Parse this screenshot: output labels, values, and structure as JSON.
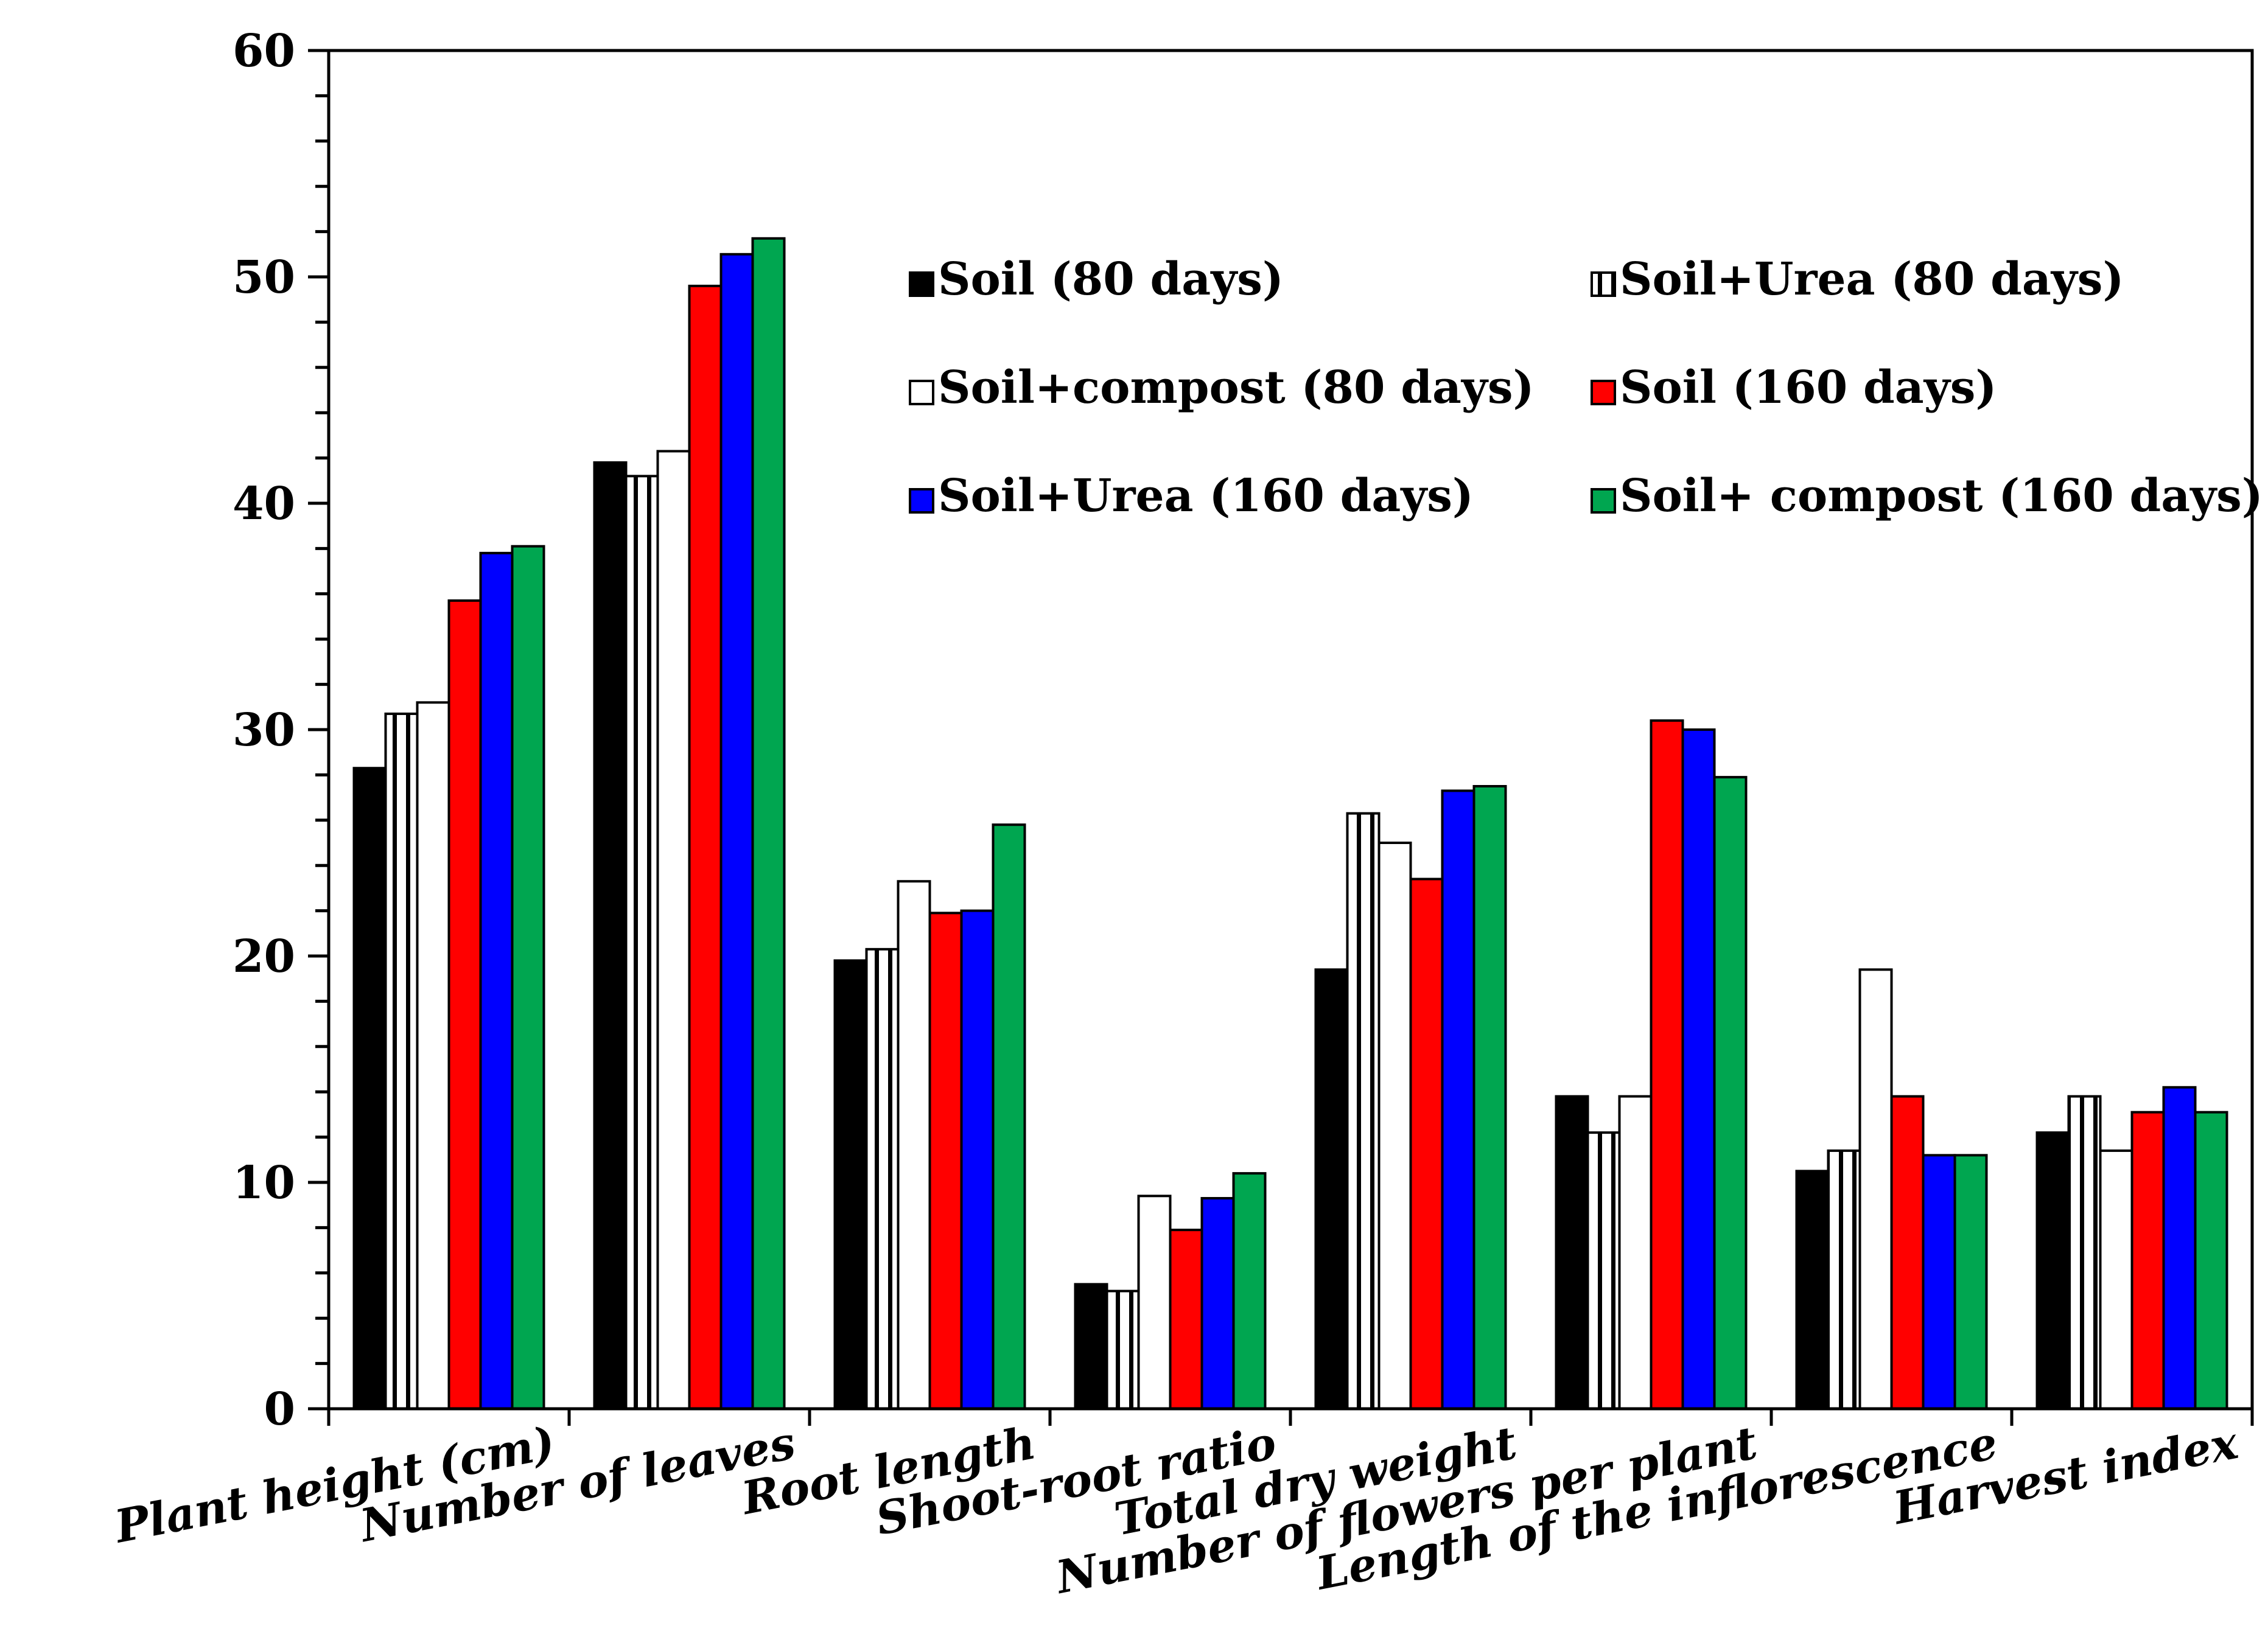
{
  "chart_data": {
    "type": "bar",
    "title": "",
    "xlabel": "",
    "ylabel": "",
    "ylim": [
      0,
      60
    ],
    "y_ticks": [
      "0",
      "10",
      "20",
      "30",
      "40",
      "50",
      "60"
    ],
    "grid": false,
    "legend_position": "top-right",
    "categories": [
      "Plant height (cm)",
      "Number of leaves",
      "Root length",
      "Shoot-root ratio",
      "Total dry weight",
      "Number of flowers per plant",
      "Length of the  inflorescence",
      "Harvest index"
    ],
    "series": [
      {
        "name": "Soil (80 days)",
        "color": "#000000",
        "pattern": "solid",
        "values": [
          28.3,
          41.8,
          19.8,
          5.5,
          19.4,
          13.8,
          10.5,
          12.2
        ]
      },
      {
        "name": "Soil+Urea (80 days)",
        "color": "#ffffff",
        "pattern": "striped",
        "values": [
          30.7,
          41.2,
          20.3,
          5.2,
          26.3,
          12.2,
          11.4,
          13.8
        ]
      },
      {
        "name": "Soil+compost (80 days)",
        "color": "#ffffff",
        "pattern": "hollow",
        "values": [
          31.2,
          42.3,
          23.3,
          9.4,
          25.0,
          13.8,
          19.4,
          11.4
        ]
      },
      {
        "name": "Soil (160 days)",
        "color": "#ff0000",
        "pattern": "solid",
        "values": [
          35.7,
          49.6,
          21.9,
          7.9,
          23.4,
          30.4,
          13.8,
          13.1
        ]
      },
      {
        "name": "Soil+Urea (160 days)",
        "color": "#0000ff",
        "pattern": "solid",
        "values": [
          37.8,
          51.0,
          22.0,
          9.3,
          27.3,
          30.0,
          11.2,
          14.2
        ]
      },
      {
        "name": "Soil+ compost (160 days)",
        "color": "#00a650",
        "pattern": "solid",
        "values": [
          38.1,
          51.7,
          25.8,
          10.4,
          27.5,
          27.9,
          11.2,
          13.1
        ]
      }
    ]
  }
}
